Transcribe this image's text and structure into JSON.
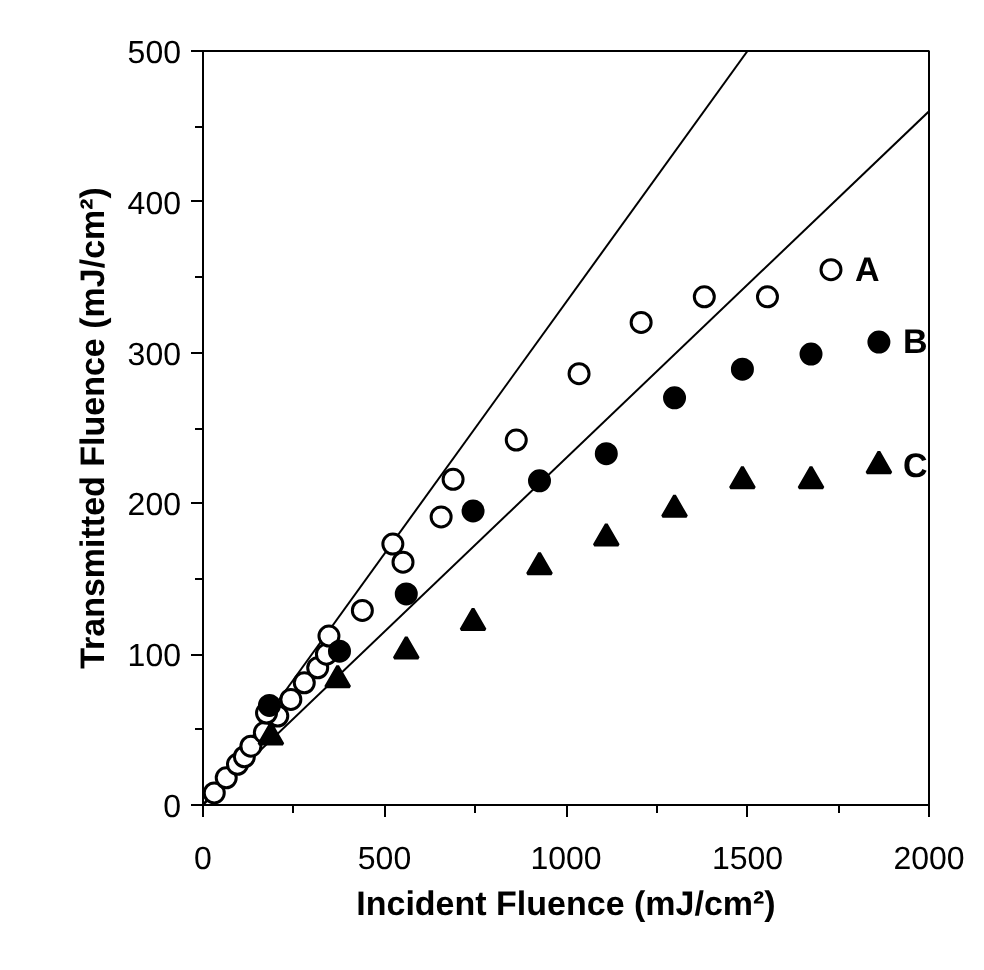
{
  "chart_data": {
    "type": "scatter",
    "xlabel": "Incident Fluence (mJ/cm²)",
    "ylabel": "Transmitted Fluence (mJ/cm²)",
    "xlim": [
      0,
      2000
    ],
    "ylim": [
      0,
      500
    ],
    "xticks": [
      0,
      {
        "value": 250,
        "label": null
      },
      500,
      {
        "value": 750,
        "label": null
      },
      1000,
      {
        "value": 1250,
        "label": null
      },
      1500,
      {
        "value": 1750,
        "label": null
      },
      2000
    ],
    "yticks": [
      0,
      {
        "value": 50,
        "label": null
      },
      100,
      {
        "value": 150,
        "label": null
      },
      200,
      {
        "value": 250,
        "label": null
      },
      300,
      {
        "value": 350,
        "label": null
      },
      400,
      {
        "value": 450,
        "label": null
      },
      500
    ],
    "grid": false,
    "series": [
      {
        "name": "A",
        "marker": "circle",
        "color": "#ffffff",
        "x": [
          31,
          64,
          95,
          114,
          132,
          169,
          206,
          175,
          242,
          279,
          316,
          340,
          347,
          439,
          551,
          523,
          656,
          689,
          863,
          1036,
          1207,
          1381,
          1555,
          1730
        ],
        "values": [
          8,
          18,
          27,
          32,
          39,
          48,
          59,
          61,
          70,
          81,
          91,
          100,
          112,
          129,
          161,
          173,
          191,
          216,
          242,
          286,
          320,
          337,
          337,
          355
        ]
      },
      {
        "name": "B",
        "marker": "circle",
        "color": "#000000",
        "x": [
          183,
          376,
          560,
          744,
          927,
          1111,
          1299,
          1486,
          1675,
          1862
        ],
        "values": [
          66,
          102,
          140,
          195,
          215,
          233,
          270,
          289,
          299,
          307
        ]
      },
      {
        "name": "C",
        "marker": "triangle",
        "color": "#000000",
        "x": [
          187,
          371,
          560,
          744,
          927,
          1111,
          1299,
          1486,
          1675,
          1862
        ],
        "values": [
          45,
          83,
          102,
          121,
          158,
          177,
          196,
          215,
          215,
          225
        ]
      },
      {
        "type": "line",
        "color": "#000000",
        "x": [
          0,
          1500
        ],
        "values": [
          0,
          500
        ]
      },
      {
        "type": "line",
        "color": "#000000",
        "x": [
          0,
          2000
        ],
        "values": [
          0,
          460
        ]
      }
    ]
  }
}
